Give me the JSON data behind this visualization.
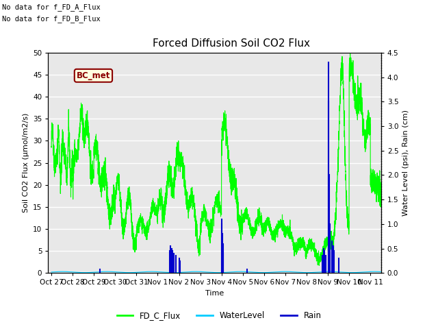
{
  "title": "Forced Diffusion Soil CO2 Flux",
  "xlabel": "Time",
  "ylabel_left": "Soil CO2 Flux (μmol/m2/s)",
  "ylabel_right": "Water Level (psi), Rain (cm)",
  "note_line1": "No data for f_FD_A_Flux",
  "note_line2": "No data for f_FD_B_Flux",
  "bc_met_label": "BC_met",
  "ylim_left": [
    0,
    50
  ],
  "ylim_right": [
    0,
    4.5
  ],
  "xtick_labels": [
    "Oct 27",
    "Oct 28",
    "Oct 29",
    "Oct 30",
    "Oct 31",
    "Nov 1",
    "Nov 2",
    "Nov 3",
    "Nov 4",
    "Nov 5",
    "Nov 6",
    "Nov 7",
    "Nov 8",
    "Nov 9",
    "Nov 10",
    "Nov 11"
  ],
  "xtick_positions": [
    0,
    1,
    2,
    3,
    4,
    5,
    6,
    7,
    8,
    9,
    10,
    11,
    12,
    13,
    14,
    15
  ],
  "ytick_left": [
    0,
    5,
    10,
    15,
    20,
    25,
    30,
    35,
    40,
    45,
    50
  ],
  "ytick_right": [
    0.0,
    0.5,
    1.0,
    1.5,
    2.0,
    2.5,
    3.0,
    3.5,
    4.0,
    4.5
  ],
  "bg_color": "#e8e8e8",
  "grid_color": "#ffffff",
  "fd_c_flux_color": "#00ff00",
  "water_level_color": "#00ccff",
  "rain_color": "#0000cc",
  "legend_entries": [
    "FD_C_Flux",
    "WaterLevel",
    "Rain"
  ]
}
